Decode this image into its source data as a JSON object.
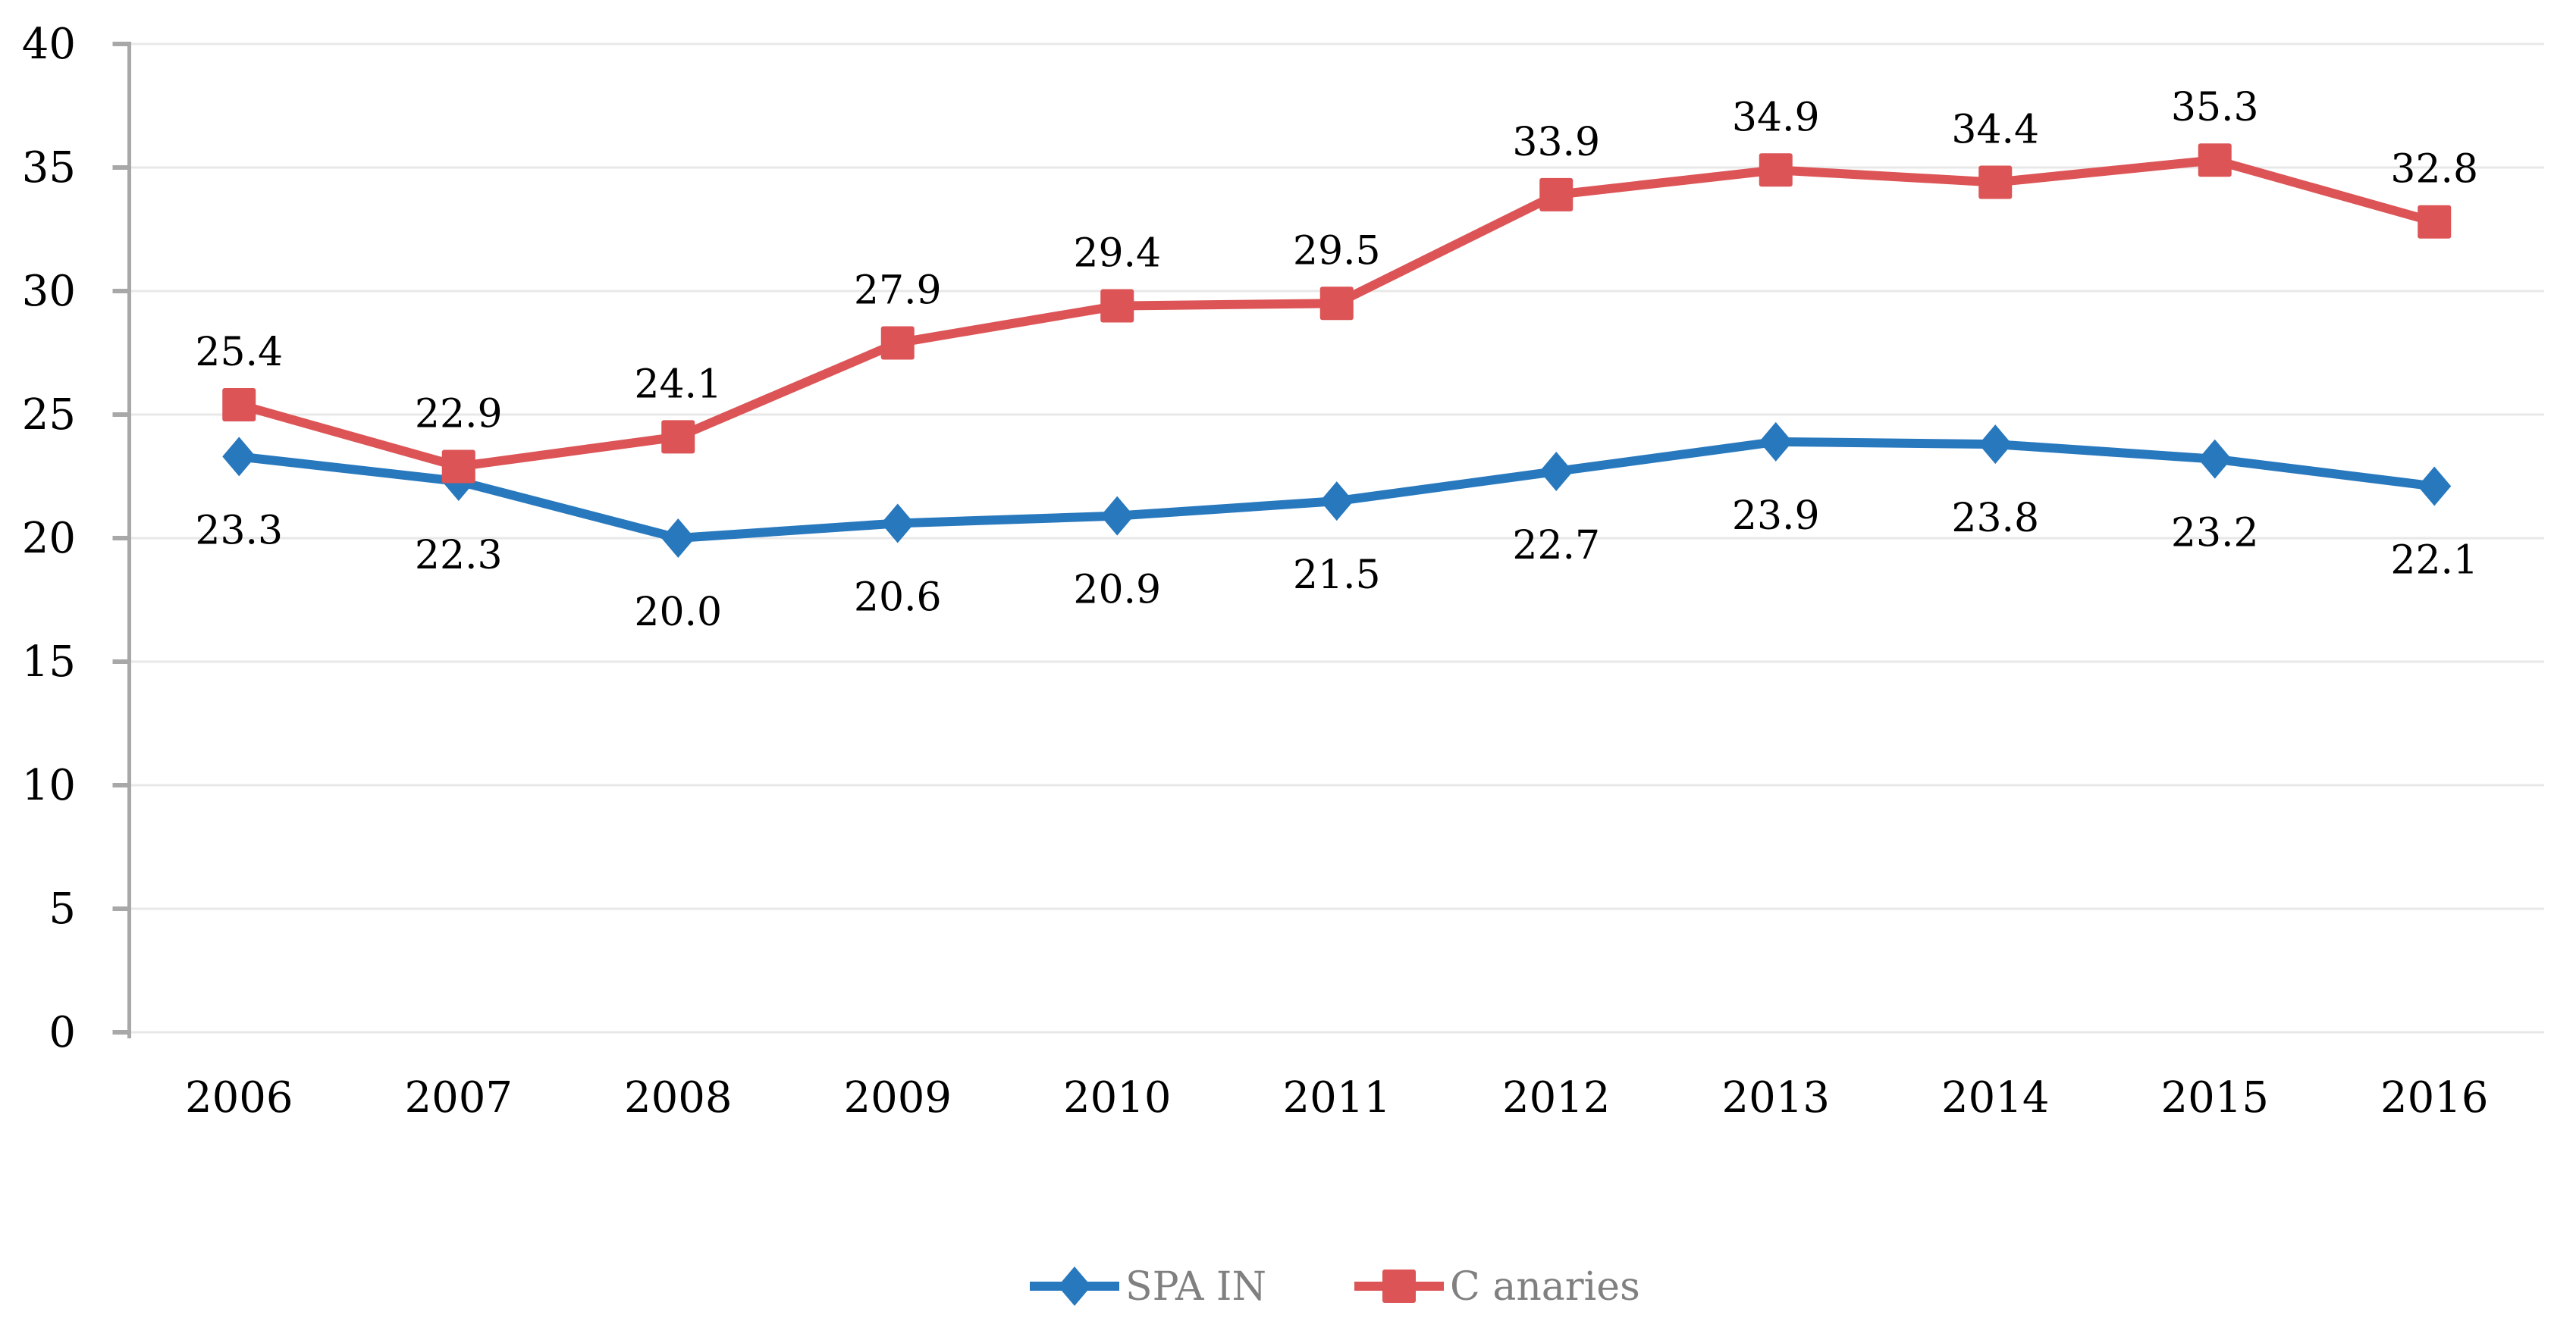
{
  "chart_data": {
    "type": "line",
    "title": "",
    "categories": [
      "2006",
      "2007",
      "2008",
      "2009",
      "2010",
      "2011",
      "2012",
      "2013",
      "2014",
      "2015",
      "2016"
    ],
    "y_axis": {
      "min": 0,
      "max": 40,
      "ticks": [
        "0",
        "5",
        "10",
        "15",
        "20",
        "25",
        "30",
        "35",
        "40"
      ]
    },
    "series": [
      {
        "name": "SPA IN",
        "color": "#2878BE",
        "marker": "diamond",
        "label_position": "below",
        "values": [
          23.3,
          22.3,
          20.0,
          20.6,
          20.9,
          21.5,
          22.7,
          23.9,
          23.8,
          23.2,
          22.1
        ],
        "labels": [
          "23.3",
          "22.3",
          "20.0",
          "20.6",
          "20.9",
          "21.5",
          "22.7",
          "23.9",
          "23.8",
          "23.2",
          "22.1"
        ]
      },
      {
        "name": "C anaries",
        "color": "#DC5456",
        "marker": "square",
        "label_position": "above",
        "values": [
          25.4,
          22.9,
          24.1,
          27.9,
          29.4,
          29.5,
          33.9,
          34.9,
          34.4,
          35.3,
          32.8
        ],
        "labels": [
          "25.4",
          "22.9",
          "24.1",
          "27.9",
          "29.4",
          "29.5",
          "33.9",
          "34.9",
          "34.4",
          "35.3",
          "32.8"
        ]
      }
    ],
    "legend": {
      "position": "bottom"
    },
    "grid": {
      "horizontal": true,
      "vertical": false
    },
    "colors": {
      "background": "#FFFFFF",
      "gridline": "#E8E8E8",
      "axis": "#A8A8A8",
      "data_label": "#000000",
      "axis_label": "#000000",
      "legend_text": "#808080"
    }
  }
}
